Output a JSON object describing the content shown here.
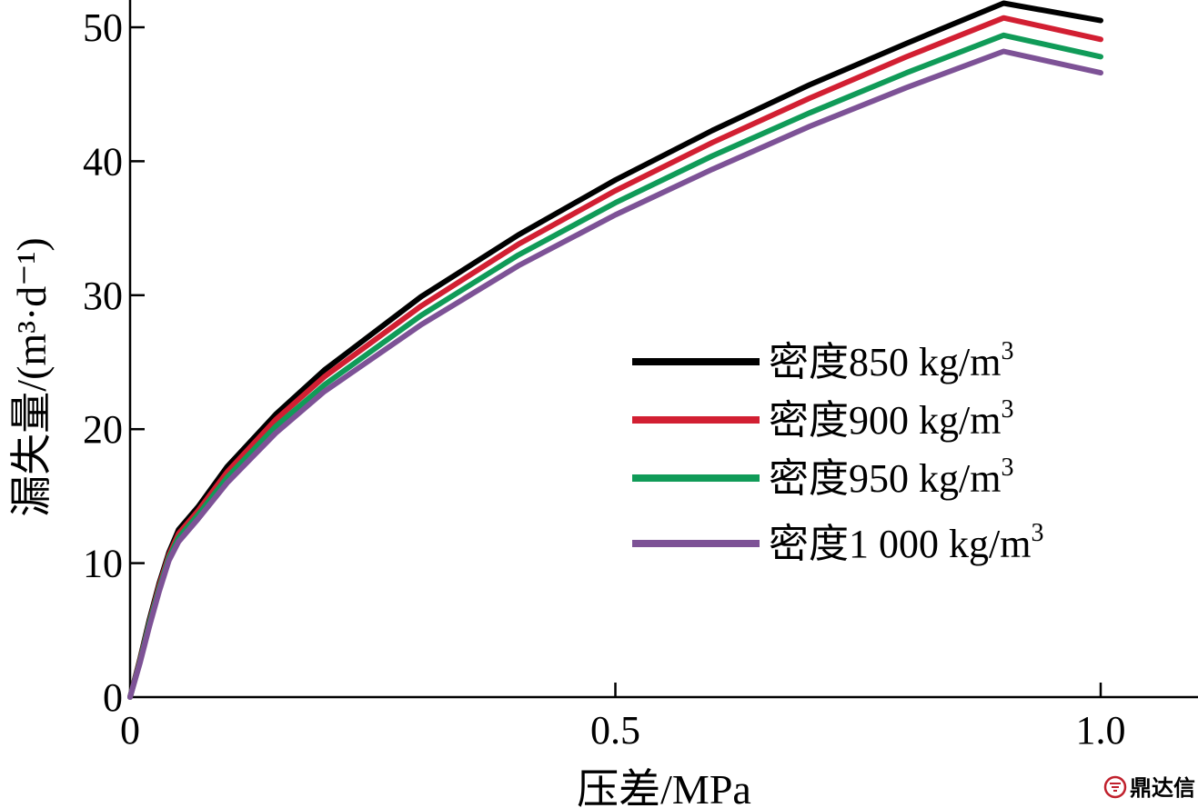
{
  "chart_data": {
    "type": "line",
    "title": "",
    "xlabel": "压差/MPa",
    "ylabel": "漏失量/(m³·d⁻¹)",
    "xlim": [
      0,
      1.1
    ],
    "ylim": [
      0,
      52
    ],
    "x_ticks": [
      0,
      0.5,
      1.0
    ],
    "x_tick_labels": [
      "0",
      "0.5",
      "1.0"
    ],
    "y_ticks": [
      0,
      10,
      20,
      30,
      40,
      50
    ],
    "y_tick_labels": [
      "0",
      "10",
      "20",
      "30",
      "40",
      "50"
    ],
    "grid": false,
    "legend_position": "lower-right",
    "x": [
      0,
      0.01,
      0.02,
      0.03,
      0.04,
      0.05,
      0.07,
      0.1,
      0.15,
      0.2,
      0.3,
      0.4,
      0.5,
      0.6,
      0.7,
      0.8,
      0.9,
      1.0
    ],
    "series": [
      {
        "name": "密度850 kg/m³",
        "label_text": "密度850 kg/m",
        "label_sup": "3",
        "color": "#000000",
        "values": [
          0,
          2.8,
          5.8,
          8.5,
          10.8,
          12.5,
          14.2,
          17.2,
          21.1,
          24.4,
          29.9,
          34.5,
          38.6,
          42.3,
          45.7,
          48.8,
          51.8,
          50.5
        ]
      },
      {
        "name": "密度900 kg/m³",
        "label_text": "密度900 kg/m",
        "label_sup": "3",
        "color": "#d21f32",
        "values": [
          0,
          2.7,
          5.6,
          8.3,
          10.6,
          12.2,
          13.9,
          16.8,
          20.7,
          23.9,
          29.2,
          33.8,
          37.8,
          41.4,
          44.7,
          47.8,
          50.7,
          49.1
        ]
      },
      {
        "name": "密度950 kg/m³",
        "label_text": "密度950 kg/m",
        "label_sup": "3",
        "color": "#109b58",
        "values": [
          0,
          2.6,
          5.5,
          8.1,
          10.4,
          11.9,
          13.6,
          16.4,
          20.2,
          23.3,
          28.5,
          33.0,
          36.9,
          40.4,
          43.6,
          46.6,
          49.4,
          47.8
        ]
      },
      {
        "name": "密度1 000 kg/m³",
        "label_text": "密度1 000 kg/m",
        "label_sup": "3",
        "color": "#7d5296",
        "values": [
          0,
          2.5,
          5.3,
          7.9,
          10.2,
          11.6,
          13.3,
          16.0,
          19.7,
          22.8,
          27.8,
          32.2,
          36.0,
          39.4,
          42.6,
          45.5,
          48.2,
          46.6
        ]
      }
    ]
  },
  "watermark": {
    "text": "鼎达信",
    "icon": "seal-logo-icon",
    "color": "#c0202c"
  }
}
